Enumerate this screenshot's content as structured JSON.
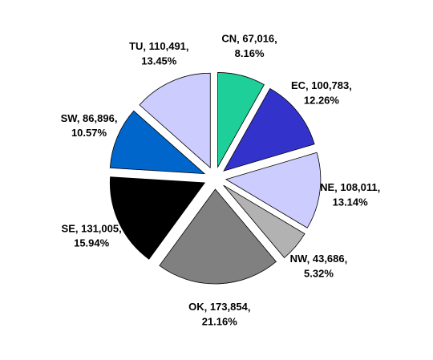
{
  "chart_data": {
    "type": "pie",
    "categories": [
      "CN",
      "EC",
      "NE",
      "NW",
      "OK",
      "SE",
      "SW",
      "TU"
    ],
    "values": [
      67016,
      100783,
      108011,
      43686,
      173854,
      131005,
      86896,
      110491
    ],
    "value_labels": [
      "67,016",
      "100,783",
      "108,011",
      "43,686",
      "173,854",
      "131,005",
      "86,896",
      "110,491"
    ],
    "percents": [
      8.16,
      12.26,
      13.14,
      5.32,
      21.16,
      15.94,
      10.57,
      13.45
    ],
    "percent_labels": [
      "8.16%",
      "12.26%",
      "13.14%",
      "5.32%",
      "21.16%",
      "15.94%",
      "10.57%",
      "13.45%"
    ],
    "colors": [
      "#1fcf9a",
      "#3333cc",
      "#ccccff",
      "#b2b2b2",
      "#808080",
      "#000000",
      "#0066cc",
      "#ccccff"
    ]
  }
}
